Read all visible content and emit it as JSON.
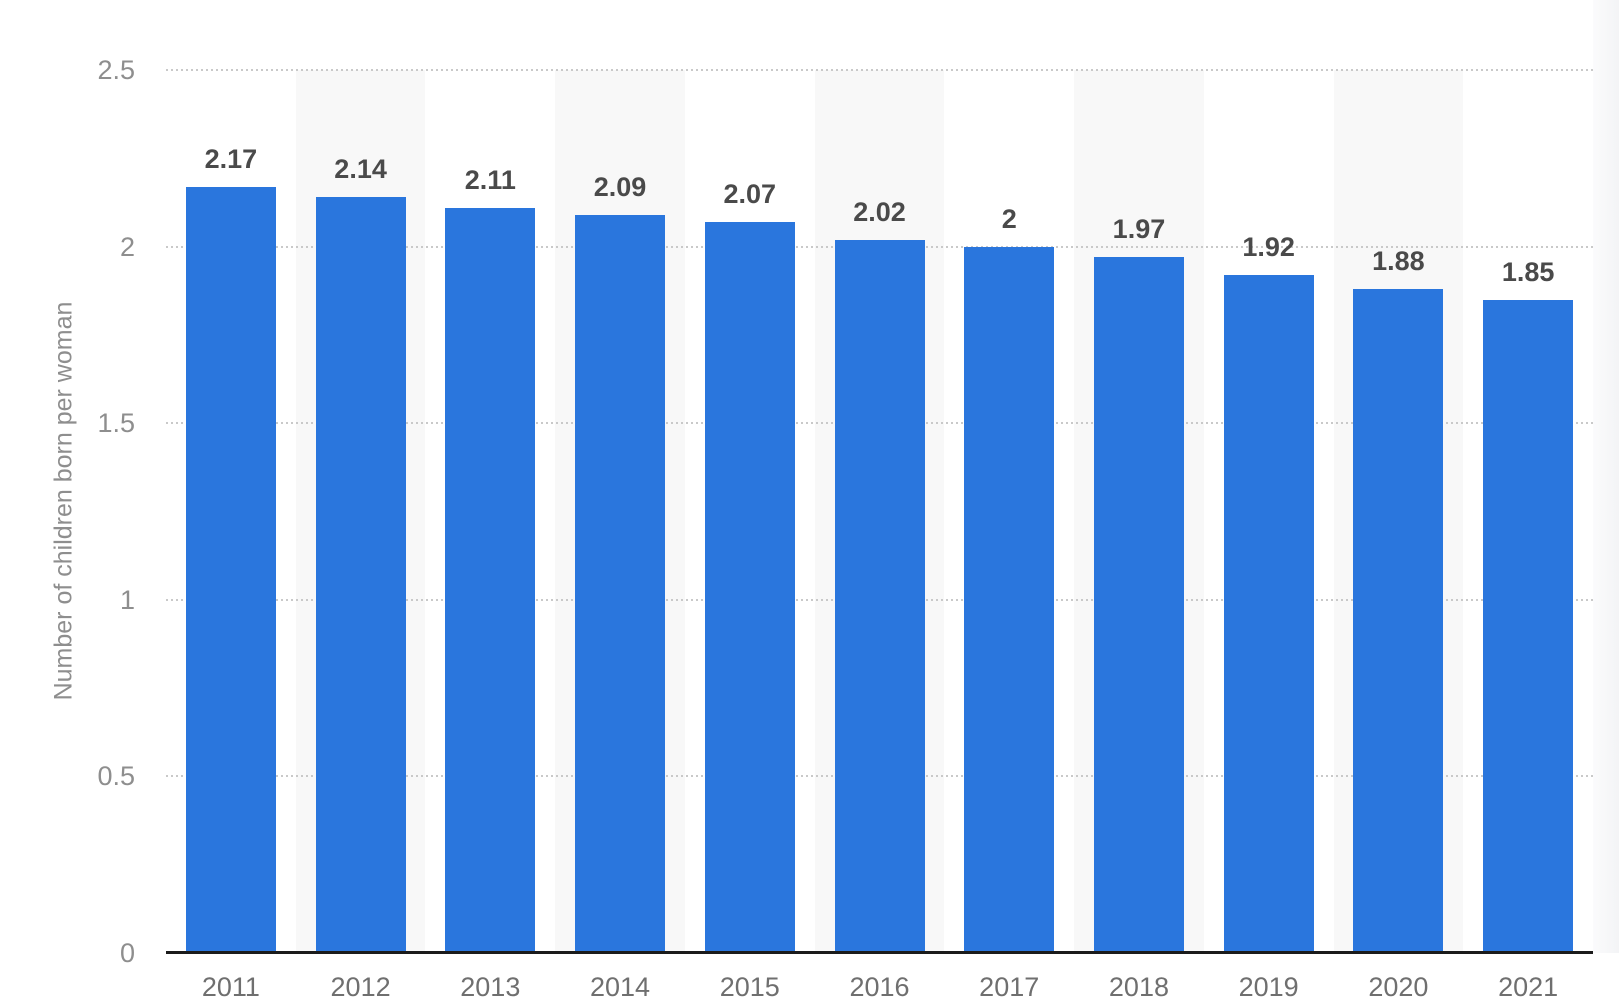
{
  "chart_data": {
    "type": "bar",
    "title": "",
    "categories": [
      "2011",
      "2012",
      "2013",
      "2014",
      "2015",
      "2016",
      "2017",
      "2018",
      "2019",
      "2020",
      "2021"
    ],
    "values": [
      2.17,
      2.14,
      2.11,
      2.09,
      2.07,
      2.02,
      2,
      1.97,
      1.92,
      1.88,
      1.85
    ],
    "value_labels": [
      "2.17",
      "2.14",
      "2.11",
      "2.09",
      "2.07",
      "2.02",
      "2",
      "1.97",
      "1.92",
      "1.88",
      "1.85"
    ],
    "xlabel": "",
    "ylabel": "Number of children born per woman",
    "ylim": [
      0,
      2.5
    ],
    "y_ticks": [
      {
        "value": 2.5,
        "label": "2.5"
      },
      {
        "value": 2,
        "label": "2"
      },
      {
        "value": 1.5,
        "label": "1.5"
      },
      {
        "value": 1,
        "label": "1"
      },
      {
        "value": 0.5,
        "label": "0.5"
      },
      {
        "value": 0,
        "label": "0"
      }
    ],
    "legend": "none",
    "grid": "horizontal-dotted",
    "background_style": "alternating vertical bands behind even-year columns",
    "colors": {
      "bar": "#2a76dd",
      "band": "#f8f8f8",
      "gridline": "#c9c9c9",
      "axis_line": "#1b1b1b",
      "value_label": "#4a4a4a",
      "y_tick_label": "#8e8e8e",
      "x_tick_label": "#6f6f6f",
      "y_title": "#8e8e8e"
    }
  }
}
